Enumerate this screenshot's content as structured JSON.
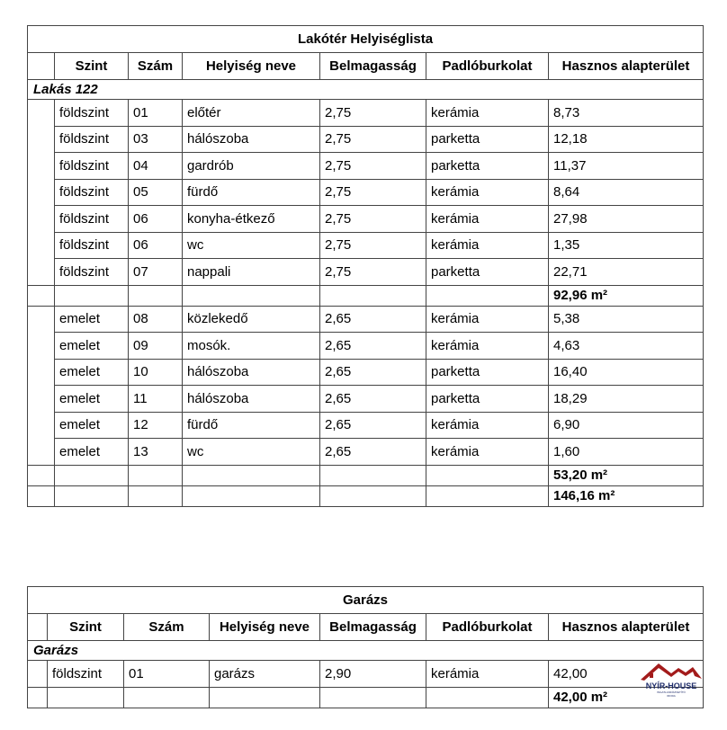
{
  "tables": [
    {
      "title": "Lakótér Helyiséglista",
      "headers": [
        "Szint",
        "Szám",
        "Helyiség neve",
        "Belmagasság",
        "Padlóburkolat",
        "Hasznos alapterület"
      ],
      "group": "Lakás 122",
      "sections": [
        {
          "rows": [
            [
              "földszint",
              "01",
              "előtér",
              "2,75",
              "kerámia",
              "8,73"
            ],
            [
              "földszint",
              "03",
              "hálószoba",
              "2,75",
              "parketta",
              "12,18"
            ],
            [
              "földszint",
              "04",
              "gardrób",
              "2,75",
              "parketta",
              "11,37"
            ],
            [
              "földszint",
              "05",
              "fürdő",
              "2,75",
              "kerámia",
              "8,64"
            ],
            [
              "földszint",
              "06",
              "konyha-étkező",
              "2,75",
              "kerámia",
              "27,98"
            ],
            [
              "földszint",
              "06",
              "wc",
              "2,75",
              "kerámia",
              "1,35"
            ],
            [
              "földszint",
              "07",
              "nappali",
              "2,75",
              "parketta",
              "22,71"
            ]
          ],
          "subtotal": "92,96 m²"
        },
        {
          "rows": [
            [
              "emelet",
              "08",
              "közlekedő",
              "2,65",
              "kerámia",
              "5,38"
            ],
            [
              "emelet",
              "09",
              "mosók.",
              "2,65",
              "kerámia",
              "4,63"
            ],
            [
              "emelet",
              "10",
              "hálószoba",
              "2,65",
              "parketta",
              "16,40"
            ],
            [
              "emelet",
              "11",
              "hálószoba",
              "2,65",
              "parketta",
              "18,29"
            ],
            [
              "emelet",
              "12",
              "fürdő",
              "2,65",
              "kerámia",
              "6,90"
            ],
            [
              "emelet",
              "13",
              "wc",
              "2,65",
              "kerámia",
              "1,60"
            ]
          ],
          "subtotal": "53,20 m²"
        }
      ],
      "total": "146,16 m²"
    },
    {
      "title": "Garázs",
      "headers": [
        "Szint",
        "Szám",
        "Helyiség neve",
        "Belmagasság",
        "Padlóburkolat",
        "Hasznos alapterület"
      ],
      "group": "Garázs",
      "sections": [
        {
          "rows": [
            [
              "földszint",
              "01",
              "garázs",
              "2,90",
              "kerámia",
              "42,00"
            ]
          ],
          "subtotal": "42,00 m²"
        }
      ]
    }
  ],
  "logo": {
    "name": "NYÍR-HOUSE",
    "tagline": "INGATLANKÖZVETÍTŐ",
    "sub": "IRODA",
    "color": "#a31b1b",
    "text_color": "#1f2d6b"
  }
}
